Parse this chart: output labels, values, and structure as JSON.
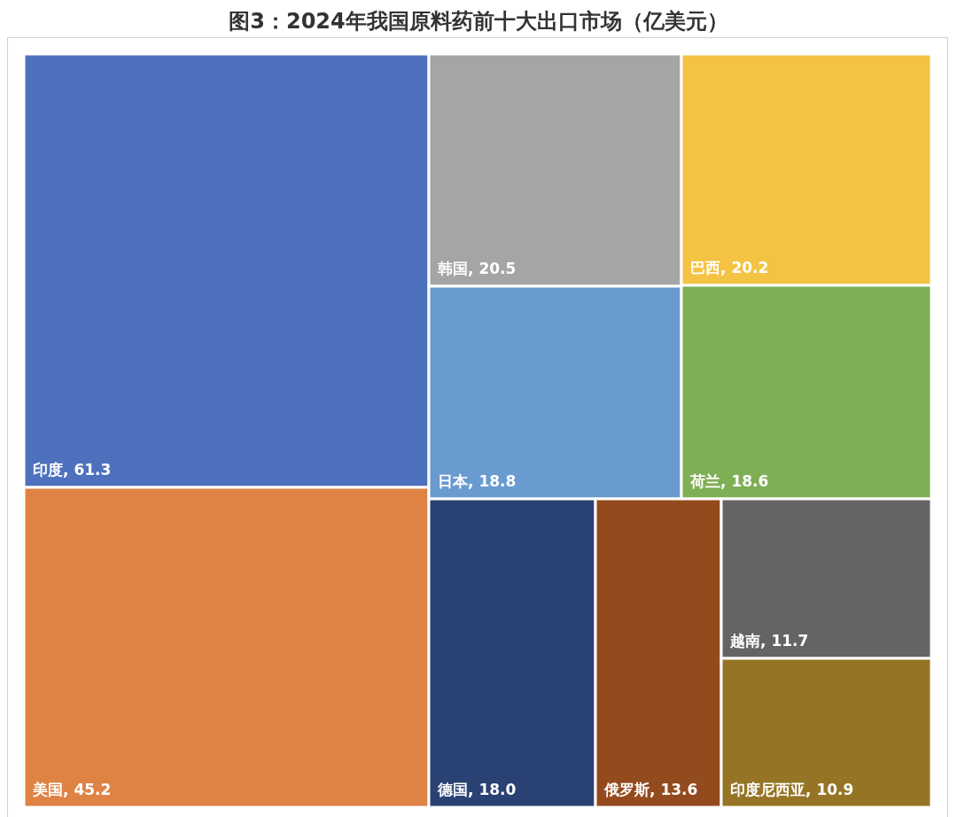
{
  "chart_data": {
    "type": "other",
    "title": "图3：2024年我国原料药前十大出口市场（亿美元）",
    "categories": [
      "印度",
      "美国",
      "韩国",
      "巴西",
      "日本",
      "荷兰",
      "德国",
      "俄罗斯",
      "越南",
      "印度尼西亚"
    ],
    "values": [
      61.3,
      45.2,
      20.5,
      20.2,
      18.8,
      18.6,
      18.0,
      13.6,
      11.7,
      10.9
    ],
    "value_labels": [
      ", 61.3",
      ", 45.2",
      ", 20.5",
      ", 20.2",
      ", 18.8",
      ", 18.6",
      ", 18.0",
      ", 13.6",
      ", 11.7",
      ", 10.9"
    ],
    "colors": [
      "#4e71be",
      "#df8344",
      "#a5a5a5",
      "#f4c344",
      "#6a9bd0",
      "#7faf55",
      "#2a4174",
      "#934a1d",
      "#646464",
      "#957525"
    ]
  }
}
